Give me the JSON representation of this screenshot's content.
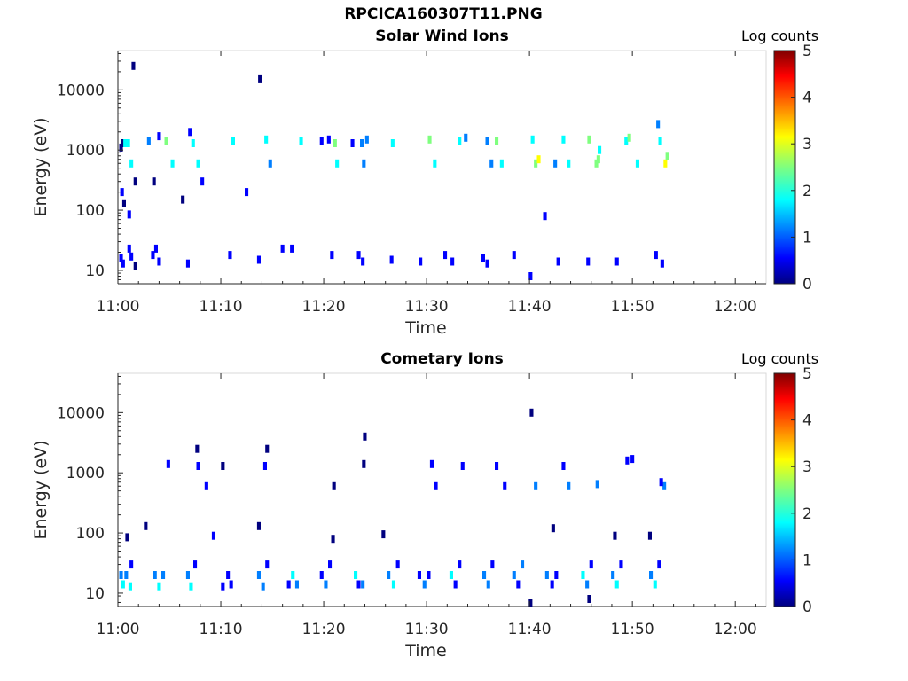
{
  "figure_title": "RPCICA160307T11.PNG",
  "colormap": [
    "#00007f",
    "#0000ff",
    "#007fff",
    "#00ffff",
    "#7fff7f",
    "#ffff00",
    "#ff7f00",
    "#ff0000",
    "#7f0000"
  ],
  "chart_data": [
    {
      "type": "heatmap",
      "title": "Solar Wind Ions",
      "xlabel": "Time",
      "ylabel": "Energy (eV)",
      "x_ticks": [
        "11:00",
        "11:10",
        "11:20",
        "11:30",
        "11:40",
        "11:50",
        "12:00"
      ],
      "x_range_minutes": [
        0,
        63
      ],
      "y_scale": "log",
      "y_ticks": [
        10,
        100,
        1000,
        10000
      ],
      "y_range": [
        6,
        45000
      ],
      "colorbar_label": "Log counts",
      "colorbar_ticks": [
        0,
        1,
        2,
        3,
        4,
        5
      ],
      "colorbar_range": [
        0,
        5
      ],
      "data_note_counts_log10": "estimated",
      "cells": [
        [
          0.3,
          1100,
          0.2
        ],
        [
          0.5,
          1300,
          0.3
        ],
        [
          0.7,
          1300,
          1.6
        ],
        [
          1.0,
          1300,
          2.0
        ],
        [
          1.3,
          600,
          1.8
        ],
        [
          1.5,
          25000,
          0.2
        ],
        [
          1.7,
          300,
          0.1
        ],
        [
          0.4,
          200,
          0.5
        ],
        [
          0.6,
          130,
          0.3
        ],
        [
          1.1,
          85,
          0.6
        ],
        [
          3.0,
          1400,
          1.3
        ],
        [
          4.7,
          1400,
          2.2
        ],
        [
          5.3,
          600,
          2.0
        ],
        [
          4.0,
          1700,
          0.8
        ],
        [
          3.5,
          300,
          0.2
        ],
        [
          6.3,
          150,
          0.3
        ],
        [
          7.3,
          1300,
          2.1
        ],
        [
          7.8,
          600,
          1.9
        ],
        [
          8.2,
          300,
          0.4
        ],
        [
          7.0,
          2000,
          0.6
        ],
        [
          11.2,
          1400,
          1.8
        ],
        [
          14.4,
          1500,
          2.0
        ],
        [
          14.8,
          600,
          1.4
        ],
        [
          12.5,
          200,
          0.5
        ],
        [
          13.8,
          15000,
          0.2
        ],
        [
          17.8,
          1400,
          1.6
        ],
        [
          19.8,
          1400,
          0.7
        ],
        [
          20.5,
          1500,
          0.9
        ],
        [
          21.1,
          1300,
          2.2
        ],
        [
          21.3,
          600,
          1.9
        ],
        [
          22.8,
          1300,
          0.8
        ],
        [
          23.7,
          1300,
          1.2
        ],
        [
          24.2,
          1500,
          1.5
        ],
        [
          23.9,
          600,
          1.0
        ],
        [
          26.7,
          1300,
          1.6
        ],
        [
          30.3,
          1500,
          2.3
        ],
        [
          30.8,
          600,
          1.8
        ],
        [
          33.2,
          1400,
          1.9
        ],
        [
          33.8,
          1600,
          1.0
        ],
        [
          35.9,
          1400,
          1.2
        ],
        [
          36.8,
          1400,
          2.3
        ],
        [
          36.3,
          600,
          1.5
        ],
        [
          37.3,
          600,
          2.0
        ],
        [
          40.3,
          1500,
          2.1
        ],
        [
          40.6,
          600,
          2.6
        ],
        [
          40.9,
          700,
          2.9
        ],
        [
          42.5,
          600,
          1.5
        ],
        [
          43.3,
          1500,
          2.0
        ],
        [
          43.8,
          600,
          1.9
        ],
        [
          45.8,
          1500,
          2.2
        ],
        [
          46.5,
          600,
          2.5
        ],
        [
          46.7,
          700,
          2.8
        ],
        [
          46.8,
          1000,
          1.7
        ],
        [
          49.4,
          1400,
          2.0
        ],
        [
          49.7,
          1600,
          2.3
        ],
        [
          50.5,
          600,
          1.9
        ],
        [
          52.7,
          1400,
          1.7
        ],
        [
          53.2,
          600,
          2.9
        ],
        [
          53.4,
          800,
          2.5
        ],
        [
          52.5,
          2700,
          1.0
        ],
        [
          0.3,
          16,
          0.8
        ],
        [
          0.5,
          13,
          0.4
        ],
        [
          1.1,
          23,
          0.4
        ],
        [
          1.3,
          17,
          0.6
        ],
        [
          1.7,
          12,
          0.3
        ],
        [
          3.4,
          18,
          0.8
        ],
        [
          3.7,
          23,
          0.5
        ],
        [
          4.0,
          14,
          0.6
        ],
        [
          6.8,
          13,
          0.7
        ],
        [
          10.9,
          18,
          0.8
        ],
        [
          13.7,
          15,
          0.7
        ],
        [
          16.0,
          23,
          0.5
        ],
        [
          16.9,
          23,
          0.6
        ],
        [
          20.8,
          18,
          0.6
        ],
        [
          23.4,
          18,
          0.8
        ],
        [
          23.8,
          14,
          0.6
        ],
        [
          26.6,
          15,
          0.4
        ],
        [
          29.4,
          14,
          0.5
        ],
        [
          31.8,
          18,
          0.7
        ],
        [
          32.5,
          14,
          0.6
        ],
        [
          35.5,
          16,
          0.6
        ],
        [
          35.9,
          13,
          0.5
        ],
        [
          38.5,
          18,
          0.5
        ],
        [
          40.1,
          8,
          0.4
        ],
        [
          42.8,
          14,
          0.6
        ],
        [
          45.7,
          14,
          0.6
        ],
        [
          48.5,
          14,
          0.6
        ],
        [
          52.3,
          18,
          0.6
        ],
        [
          52.9,
          13,
          0.6
        ],
        [
          41.5,
          80,
          0.4
        ]
      ]
    },
    {
      "type": "heatmap",
      "title": "Cometary Ions",
      "xlabel": "Time",
      "ylabel": "Energy (eV)",
      "x_ticks": [
        "11:00",
        "11:10",
        "11:20",
        "11:30",
        "11:40",
        "11:50",
        "12:00"
      ],
      "x_range_minutes": [
        0,
        63
      ],
      "y_scale": "log",
      "y_ticks": [
        10,
        100,
        1000,
        10000
      ],
      "y_range": [
        6,
        45000
      ],
      "colorbar_label": "Log counts",
      "colorbar_ticks": [
        0,
        1,
        2,
        3,
        4,
        5
      ],
      "colorbar_range": [
        0,
        5
      ],
      "data_note_counts_log10": "estimated",
      "cells": [
        [
          0.3,
          20,
          1.2
        ],
        [
          0.5,
          14,
          1.6
        ],
        [
          0.8,
          20,
          1.0
        ],
        [
          1.2,
          13,
          2.0
        ],
        [
          1.3,
          30,
          0.8
        ],
        [
          3.6,
          20,
          1.3
        ],
        [
          4.0,
          13,
          1.9
        ],
        [
          4.4,
          20,
          1.1
        ],
        [
          6.8,
          20,
          1.1
        ],
        [
          7.1,
          13,
          2.0
        ],
        [
          7.5,
          30,
          0.7
        ],
        [
          10.2,
          13,
          0.9
        ],
        [
          10.7,
          20,
          0.6
        ],
        [
          11.0,
          14,
          0.8
        ],
        [
          13.7,
          20,
          1.5
        ],
        [
          14.1,
          13,
          1.0
        ],
        [
          14.5,
          30,
          0.8
        ],
        [
          16.6,
          14,
          0.7
        ],
        [
          17.0,
          20,
          1.6
        ],
        [
          17.4,
          14,
          1.2
        ],
        [
          19.8,
          20,
          0.9
        ],
        [
          20.2,
          14,
          1.3
        ],
        [
          20.6,
          30,
          0.8
        ],
        [
          23.1,
          20,
          1.8
        ],
        [
          23.4,
          14,
          0.7
        ],
        [
          23.8,
          14,
          1.4
        ],
        [
          26.3,
          20,
          1.2
        ],
        [
          26.8,
          14,
          1.8
        ],
        [
          27.2,
          30,
          0.6
        ],
        [
          29.3,
          20,
          0.8
        ],
        [
          29.8,
          14,
          1.3
        ],
        [
          30.2,
          20,
          0.7
        ],
        [
          32.4,
          20,
          1.6
        ],
        [
          32.8,
          14,
          0.9
        ],
        [
          33.2,
          30,
          0.8
        ],
        [
          35.6,
          20,
          1.2
        ],
        [
          36.0,
          14,
          1.0
        ],
        [
          36.4,
          30,
          0.8
        ],
        [
          38.5,
          20,
          1.3
        ],
        [
          38.9,
          14,
          0.7
        ],
        [
          39.3,
          30,
          1.0
        ],
        [
          41.7,
          20,
          1.5
        ],
        [
          42.2,
          14,
          0.9
        ],
        [
          42.6,
          20,
          0.8
        ],
        [
          45.2,
          20,
          1.9
        ],
        [
          45.6,
          14,
          1.3
        ],
        [
          46.0,
          30,
          0.7
        ],
        [
          48.1,
          20,
          1.0
        ],
        [
          48.5,
          14,
          1.6
        ],
        [
          48.9,
          30,
          0.7
        ],
        [
          51.8,
          20,
          1.3
        ],
        [
          52.2,
          14,
          1.8
        ],
        [
          52.6,
          30,
          0.8
        ],
        [
          4.9,
          1400,
          0.5
        ],
        [
          7.8,
          1300,
          0.4
        ],
        [
          8.6,
          600,
          0.4
        ],
        [
          10.2,
          1300,
          0.3
        ],
        [
          14.3,
          1300,
          0.4
        ],
        [
          21.0,
          600,
          0.3
        ],
        [
          23.9,
          1400,
          0.3
        ],
        [
          30.5,
          1400,
          0.4
        ],
        [
          30.9,
          600,
          0.5
        ],
        [
          33.5,
          1300,
          0.4
        ],
        [
          36.8,
          1300,
          0.4
        ],
        [
          37.6,
          600,
          0.6
        ],
        [
          40.6,
          600,
          1.5
        ],
        [
          43.3,
          1300,
          0.5
        ],
        [
          43.8,
          600,
          1.1
        ],
        [
          46.6,
          650,
          1.0
        ],
        [
          49.5,
          1600,
          0.6
        ],
        [
          50.0,
          1700,
          0.5
        ],
        [
          53.1,
          600,
          1.2
        ],
        [
          52.8,
          700,
          0.9
        ],
        [
          40.2,
          10000,
          0.2
        ],
        [
          24.0,
          4000,
          0.3
        ],
        [
          7.7,
          2500,
          0.2
        ],
        [
          14.5,
          2500,
          0.2
        ],
        [
          0.9,
          85,
          0.3
        ],
        [
          2.7,
          130,
          0.3
        ],
        [
          9.3,
          90,
          0.4
        ],
        [
          13.7,
          130,
          0.3
        ],
        [
          20.9,
          80,
          0.3
        ],
        [
          25.8,
          95,
          0.3
        ],
        [
          42.3,
          120,
          0.2
        ],
        [
          48.3,
          90,
          0.3
        ],
        [
          51.7,
          90,
          0.3
        ],
        [
          40.1,
          7,
          0.2
        ],
        [
          45.8,
          8,
          0.3
        ]
      ]
    }
  ]
}
